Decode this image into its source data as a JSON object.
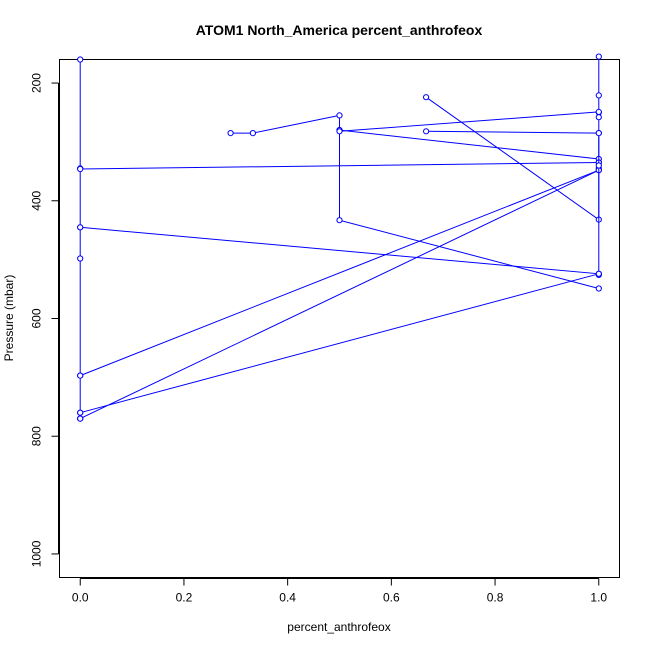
{
  "chart_data": {
    "type": "line",
    "title": "ATOM1 North_America percent_anthrofeox",
    "xlabel": "percent_anthrofeox",
    "ylabel": "Pressure (mbar)",
    "xlim": [
      -0.04,
      1.04
    ],
    "ylim": [
      1040,
      160
    ],
    "y_reversed": true,
    "grid": false,
    "color": "#0000ff",
    "x_ticks": [
      0.0,
      0.2,
      0.4,
      0.6,
      0.8,
      1.0
    ],
    "x_tick_labels": [
      "0.0",
      "0.2",
      "0.4",
      "0.6",
      "0.8",
      "1.0"
    ],
    "y_ticks": [
      200,
      400,
      600,
      800,
      1000
    ],
    "y_tick_labels": [
      "200",
      "400",
      "600",
      "800",
      "1000"
    ],
    "series": [
      {
        "x": [
          1.0,
          1.0,
          1.0
        ],
        "y": [
          155,
          221,
          250
        ]
      },
      {
        "x": [
          0.0,
          0.0,
          0.0,
          0.0,
          0.0,
          0.0,
          0.0,
          0.0
        ],
        "y": [
          160,
          345,
          445,
          498,
          697,
          760,
          770,
          770
        ]
      },
      {
        "x": [
          0.29,
          0.333,
          0.5,
          0.5,
          1.0,
          1.0,
          1.0
        ],
        "y": [
          285,
          285,
          255,
          280,
          329,
          335,
          258
        ]
      },
      {
        "x": [
          0.5,
          0.5,
          1.0
        ],
        "y": [
          280,
          433,
          549
        ]
      },
      {
        "x": [
          0.667,
          1.0,
          1.0
        ],
        "y": [
          224,
          432,
          345
        ]
      },
      {
        "x": [
          0.667,
          1.0
        ],
        "y": [
          282,
          285
        ]
      },
      {
        "x": [
          0.5,
          1.0
        ],
        "y": [
          282,
          249
        ]
      },
      {
        "x": [
          0.0,
          1.0
        ],
        "y": [
          346,
          335
        ]
      },
      {
        "x": [
          0.0,
          1.0,
          1.0
        ],
        "y": [
          445,
          524,
          526
        ]
      },
      {
        "x": [
          0.0,
          1.0
        ],
        "y": [
          697,
          348
        ]
      },
      {
        "x": [
          0.0,
          1.0
        ],
        "y": [
          770,
          348
        ]
      },
      {
        "x": [
          0.0,
          1.0
        ],
        "y": [
          760,
          524
        ]
      },
      {
        "x": [
          1.0,
          1.0,
          1.0
        ],
        "y": [
          285,
          340,
          524
        ]
      }
    ]
  }
}
